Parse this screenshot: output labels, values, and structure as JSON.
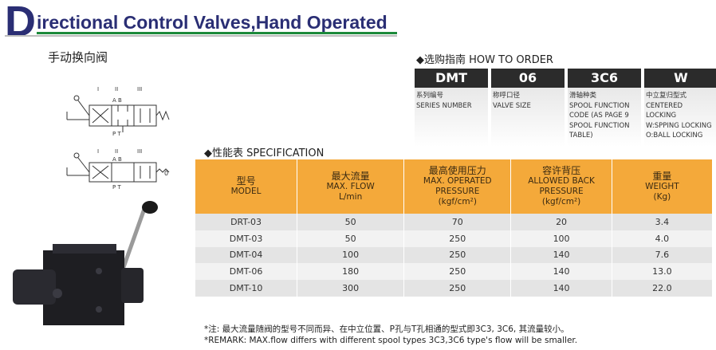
{
  "header": {
    "initial": "D",
    "title_rest": "irectional Control Valves,Hand Operated",
    "subtitle_cn": "手动换向阀"
  },
  "symbols": {
    "positions": [
      "I",
      "II",
      "III"
    ],
    "ports_top": "A B",
    "ports_bottom": "P T",
    "second_suffix": "0"
  },
  "order": {
    "heading": "◆选购指南  HOW TO ORDER",
    "boxes": [
      {
        "code": "DMT",
        "desc": [
          "系列编号",
          "SERIES NUMBER"
        ]
      },
      {
        "code": "06",
        "desc": [
          "称呼口径",
          "VALVE SIZE"
        ]
      },
      {
        "code": "3C6",
        "desc": [
          "滑轴种类",
          "SPOOL FUNCTION",
          "CODE (AS PAGE 9",
          "SPOOL FUNCTION",
          "TABLE)"
        ]
      },
      {
        "code": "W",
        "desc": [
          "中立复归型式",
          "CENTERED",
          "LOCKING",
          "W:SPPING LOCKING",
          "O:BALL LOCKING"
        ]
      }
    ]
  },
  "spec": {
    "heading": "◆性能表  SPECIFICATION",
    "columns": [
      {
        "cn": "型号",
        "en": [
          "MODEL"
        ]
      },
      {
        "cn": "最大流量",
        "en": [
          "MAX. FLOW",
          "L/min"
        ]
      },
      {
        "cn": "最高使用压力",
        "en": [
          "MAX. OPERATED",
          "PRESSURE",
          "(kgf/cm²)"
        ]
      },
      {
        "cn": "容许背压",
        "en": [
          "ALLOWED BACK",
          "PRESSURE",
          "(kgf/cm²)"
        ]
      },
      {
        "cn": "重量",
        "en": [
          "WEIGHT",
          "(Kg)"
        ]
      }
    ],
    "rows": [
      [
        "DRT-03",
        "50",
        "70",
        "20",
        "3.4"
      ],
      [
        "DMT-03",
        "50",
        "250",
        "100",
        "4.0"
      ],
      [
        "DMT-04",
        "100",
        "250",
        "140",
        "7.6"
      ],
      [
        "DMT-06",
        "180",
        "250",
        "140",
        "13.0"
      ],
      [
        "DMT-10",
        "300",
        "250",
        "140",
        "22.0"
      ]
    ]
  },
  "notes": {
    "cn": "*注: 最大流量随阀的型号不同而异、在中立位置、P孔与T孔相通的型式即3C3, 3C6, 其流量较小。",
    "en": "*REMARK: MAX.flow differs with different spool types 3C3,3C6 type's flow will be smaller."
  },
  "colors": {
    "title": "#2a2e74",
    "rule": "#1c8a3a",
    "table_header": "#f4a93a",
    "code_box": "#2b2b2b"
  }
}
